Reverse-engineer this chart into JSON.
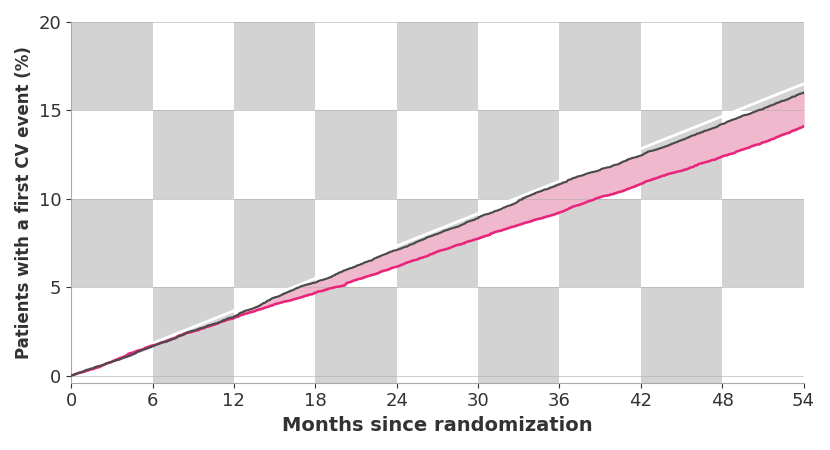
{
  "xlabel": "Months since randomization",
  "ylabel": "Patients with a first CV event (%)",
  "xlim": [
    0,
    54
  ],
  "ylim": [
    -0.4,
    20
  ],
  "xticks": [
    0,
    6,
    12,
    18,
    24,
    30,
    36,
    42,
    48,
    54
  ],
  "yticks": [
    0,
    5,
    10,
    15,
    20
  ],
  "placebo_end": 16.0,
  "liraglutide_end": 14.1,
  "white_line_end": 16.5,
  "line_color_dark": "#4a4a4a",
  "liraglutide_line_color": "#e8257a",
  "fill_light_pink": "#f0b8cc",
  "fill_hot_pink": "#e8257a",
  "white_line_color": "#ffffff",
  "checkerboard_gray": "#d3d3d3",
  "checkerboard_white": "#ffffff",
  "xlabel_fontsize": 14,
  "ylabel_fontsize": 12,
  "tick_fontsize": 13,
  "label_fontweight": "bold",
  "axis_color": "#aaaaaa"
}
